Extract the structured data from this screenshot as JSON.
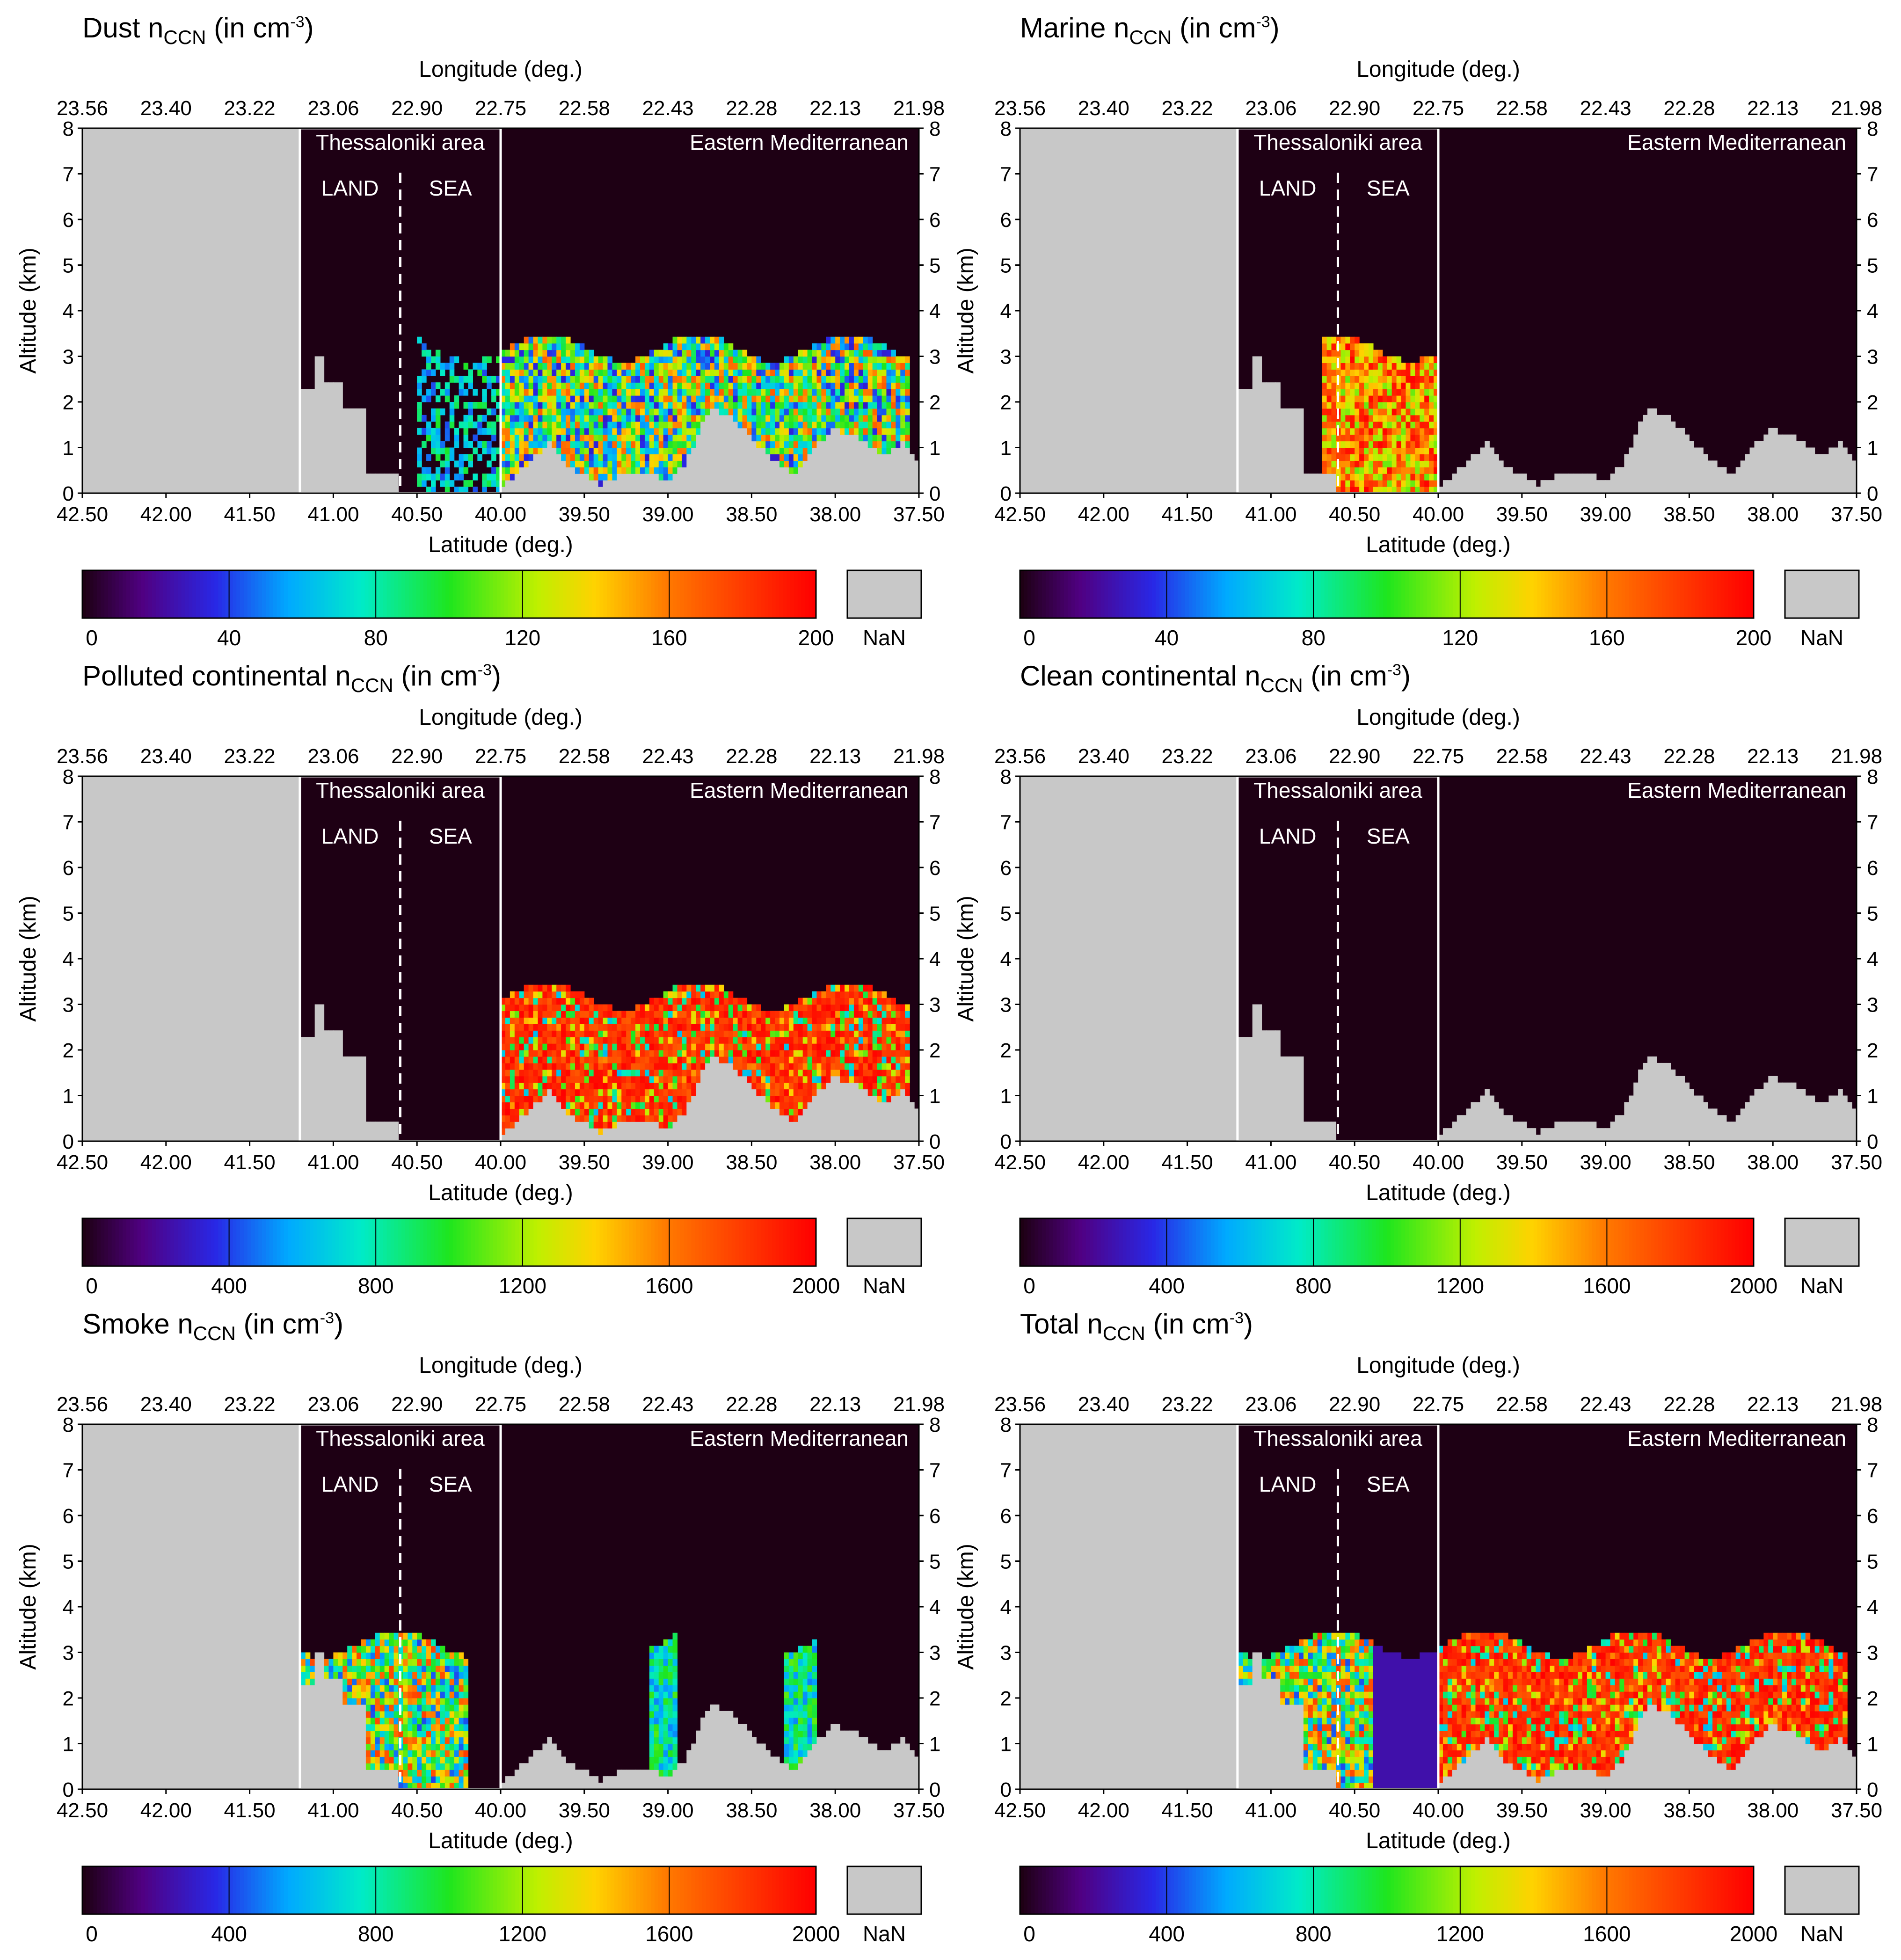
{
  "figure": {
    "panels": [
      {
        "name": "Dust",
        "title_prefix": "Dust n",
        "title_sub": "CCN",
        "title_suffix": " (in cm",
        "title_sup": "-3",
        "title_close": ")",
        "cbar_ticks": [
          "0",
          "40",
          "80",
          "120",
          "160",
          "200"
        ],
        "vmax": 200
      },
      {
        "name": "Marine",
        "title_prefix": "Marine n",
        "title_sub": "CCN",
        "title_suffix": " (in cm",
        "title_sup": "-3",
        "title_close": ")",
        "cbar_ticks": [
          "0",
          "40",
          "80",
          "120",
          "160",
          "200"
        ],
        "vmax": 200
      },
      {
        "name": "Polluted continental",
        "title_prefix": "Polluted continental n",
        "title_sub": "CCN",
        "title_suffix": " (in cm",
        "title_sup": "-3",
        "title_close": ")",
        "cbar_ticks": [
          "0",
          "400",
          "800",
          "1200",
          "1600",
          "2000"
        ],
        "vmax": 2000
      },
      {
        "name": "Clean continental",
        "title_prefix": "Clean continental n",
        "title_sub": "CCN",
        "title_suffix": " (in cm",
        "title_sup": "-3",
        "title_close": ")",
        "cbar_ticks": [
          "0",
          "400",
          "800",
          "1200",
          "1600",
          "2000"
        ],
        "vmax": 2000
      },
      {
        "name": "Smoke",
        "title_prefix": "Smoke n",
        "title_sub": "CCN",
        "title_suffix": " (in cm",
        "title_sup": "-3",
        "title_close": ")",
        "cbar_ticks": [
          "0",
          "400",
          "800",
          "1200",
          "1600",
          "2000"
        ],
        "vmax": 2000
      },
      {
        "name": "Total",
        "title_prefix": "Total n",
        "title_sub": "CCN",
        "title_suffix": " (in cm",
        "title_sup": "-3",
        "title_close": ")",
        "cbar_ticks": [
          "0",
          "400",
          "800",
          "1200",
          "1600",
          "2000"
        ],
        "vmax": 2000
      }
    ],
    "labels": {
      "top_axis": "Longitude (deg.)",
      "bottom_axis": "Latitude (deg.)",
      "left_axis": "Altitude (km)",
      "region_box": "Thessaloniki area",
      "region_right": "Eastern Mediterranean",
      "land": "LAND",
      "sea": "SEA",
      "nan": "NaN"
    },
    "longitude_ticks": [
      "23.56",
      "23.40",
      "23.22",
      "23.06",
      "22.90",
      "22.75",
      "22.58",
      "22.43",
      "22.28",
      "22.13",
      "21.98"
    ],
    "latitude_ticks": [
      "42.50",
      "42.00",
      "41.50",
      "41.00",
      "40.50",
      "40.00",
      "39.50",
      "39.00",
      "38.50",
      "38.00",
      "37.50"
    ],
    "altitude_ticks": [
      "0",
      "1",
      "2",
      "3",
      "4",
      "5",
      "6",
      "7",
      "8"
    ],
    "colors": {
      "nan": "#c8c8c8",
      "background": "#1e0014",
      "box": "#ffffff"
    }
  },
  "chart_data": [
    {
      "type": "heatmap",
      "title": "Dust nCCN (in cm-3)",
      "xlabel": "Latitude (deg.)",
      "x2label": "Longitude (deg.)",
      "ylabel": "Altitude (km)",
      "xlim": [
        42.5,
        37.5
      ],
      "ylim": [
        0,
        8
      ],
      "colorbar_range": [
        0,
        200
      ]
    },
    {
      "type": "heatmap",
      "title": "Marine nCCN (in cm-3)",
      "xlabel": "Latitude (deg.)",
      "x2label": "Longitude (deg.)",
      "ylabel": "Altitude (km)",
      "xlim": [
        42.5,
        37.5
      ],
      "ylim": [
        0,
        8
      ],
      "colorbar_range": [
        0,
        200
      ]
    },
    {
      "type": "heatmap",
      "title": "Polluted continental nCCN (in cm-3)",
      "xlabel": "Latitude (deg.)",
      "x2label": "Longitude (deg.)",
      "ylabel": "Altitude (km)",
      "xlim": [
        42.5,
        37.5
      ],
      "ylim": [
        0,
        8
      ],
      "colorbar_range": [
        0,
        2000
      ]
    },
    {
      "type": "heatmap",
      "title": "Clean continental nCCN (in cm-3)",
      "xlabel": "Latitude (deg.)",
      "x2label": "Longitude (deg.)",
      "ylabel": "Altitude (km)",
      "xlim": [
        42.5,
        37.5
      ],
      "ylim": [
        0,
        8
      ],
      "colorbar_range": [
        0,
        2000
      ]
    },
    {
      "type": "heatmap",
      "title": "Smoke nCCN (in cm-3)",
      "xlabel": "Latitude (deg.)",
      "x2label": "Longitude (deg.)",
      "ylabel": "Altitude (km)",
      "xlim": [
        42.5,
        37.5
      ],
      "ylim": [
        0,
        8
      ],
      "colorbar_range": [
        0,
        2000
      ]
    },
    {
      "type": "heatmap",
      "title": "Total nCCN (in cm-3)",
      "xlabel": "Latitude (deg.)",
      "x2label": "Longitude (deg.)",
      "ylabel": "Altitude (km)",
      "xlim": [
        42.5,
        37.5
      ],
      "ylim": [
        0,
        8
      ],
      "colorbar_range": [
        0,
        2000
      ]
    }
  ]
}
